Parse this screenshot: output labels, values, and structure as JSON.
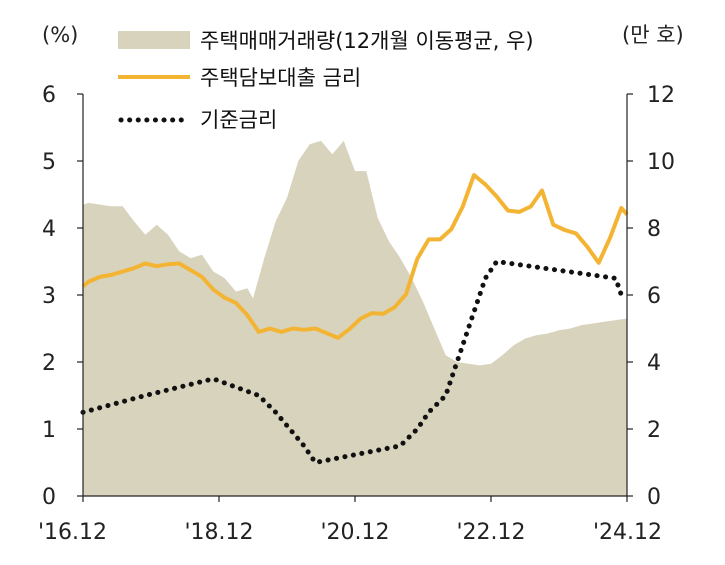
{
  "chart_data": {
    "type": "area",
    "left_axis_unit": "(%)",
    "right_axis_unit": "(만 호)",
    "left_ylim": [
      0,
      6
    ],
    "left_ticks": [
      "0",
      "1",
      "2",
      "3",
      "4",
      "5",
      "6"
    ],
    "right_ylim": [
      0,
      12
    ],
    "right_ticks": [
      "0",
      "2",
      "4",
      "6",
      "8",
      "10",
      "12"
    ],
    "x_range": [
      "2016-12",
      "2024-12"
    ],
    "x_ticks": [
      "'16.12",
      "'18.12",
      "'20.12",
      "'22.12",
      "'24.12"
    ],
    "grid": false,
    "legend_position": "top",
    "series": [
      {
        "name": "주택매매거래량(12개월 이동평균, 우)",
        "kind": "area",
        "axis": "right",
        "color": "#d8d3bd",
        "x": [
          "2016-12",
          "2017-01",
          "2017-03",
          "2017-05",
          "2017-07",
          "2017-09",
          "2017-11",
          "2018-01",
          "2018-03",
          "2018-05",
          "2018-07",
          "2018-09",
          "2018-11",
          "2019-01",
          "2019-03",
          "2019-05",
          "2019-06",
          "2019-08",
          "2019-10",
          "2019-12",
          "2020-02",
          "2020-04",
          "2020-06",
          "2020-08",
          "2020-10",
          "2020-12",
          "2021-02",
          "2021-04",
          "2021-06",
          "2021-08",
          "2021-10",
          "2021-12",
          "2022-02",
          "2022-04",
          "2022-06",
          "2022-08",
          "2022-10",
          "2022-12",
          "2023-02",
          "2023-04",
          "2023-06",
          "2023-08",
          "2023-10",
          "2023-12",
          "2024-02",
          "2024-04",
          "2024-06",
          "2024-08",
          "2024-10",
          "2024-12"
        ],
        "values": [
          8.7,
          8.75,
          8.7,
          8.65,
          8.65,
          8.2,
          7.8,
          8.1,
          7.8,
          7.3,
          7.1,
          7.2,
          6.7,
          6.5,
          6.1,
          6.2,
          5.9,
          7.1,
          8.2,
          8.9,
          10.0,
          10.5,
          10.6,
          10.2,
          10.6,
          9.7,
          9.7,
          8.3,
          7.6,
          7.1,
          6.5,
          5.8,
          5.0,
          4.2,
          4.0,
          3.95,
          3.9,
          3.95,
          4.2,
          4.5,
          4.7,
          4.8,
          4.85,
          4.95,
          5.0,
          5.1,
          5.15,
          5.2,
          5.25,
          5.3
        ]
      },
      {
        "name": "주택담보대출 금리",
        "kind": "line",
        "axis": "left",
        "color": "#f4b433",
        "x": [
          "2016-12",
          "2017-01",
          "2017-03",
          "2017-05",
          "2017-07",
          "2017-09",
          "2017-11",
          "2018-01",
          "2018-03",
          "2018-05",
          "2018-07",
          "2018-09",
          "2018-11",
          "2019-01",
          "2019-03",
          "2019-05",
          "2019-07",
          "2019-09",
          "2019-11",
          "2020-01",
          "2020-03",
          "2020-05",
          "2020-07",
          "2020-09",
          "2020-11",
          "2021-01",
          "2021-03",
          "2021-05",
          "2021-07",
          "2021-09",
          "2021-11",
          "2022-01",
          "2022-03",
          "2022-05",
          "2022-07",
          "2022-09",
          "2022-11",
          "2023-01",
          "2023-03",
          "2023-05",
          "2023-07",
          "2023-09",
          "2023-11",
          "2024-01",
          "2024-03",
          "2024-05",
          "2024-07",
          "2024-09",
          "2024-11",
          "2024-12"
        ],
        "values": [
          3.13,
          3.2,
          3.27,
          3.3,
          3.35,
          3.4,
          3.47,
          3.43,
          3.46,
          3.47,
          3.37,
          3.27,
          3.08,
          2.96,
          2.88,
          2.7,
          2.45,
          2.5,
          2.45,
          2.5,
          2.48,
          2.5,
          2.43,
          2.36,
          2.49,
          2.65,
          2.73,
          2.72,
          2.82,
          3.01,
          3.54,
          3.83,
          3.83,
          3.98,
          4.32,
          4.79,
          4.65,
          4.47,
          4.26,
          4.24,
          4.32,
          4.56,
          4.05,
          3.97,
          3.92,
          3.72,
          3.48,
          3.85,
          4.3,
          4.2
        ]
      },
      {
        "name": "기준금리",
        "kind": "dotted-line",
        "axis": "left",
        "color": "#111111",
        "x": [
          "2016-12",
          "2017-11",
          "2018-11",
          "2019-07",
          "2019-10",
          "2020-03",
          "2020-05",
          "2021-08",
          "2021-11",
          "2022-01",
          "2022-04",
          "2022-05",
          "2022-07",
          "2022-08",
          "2022-10",
          "2022-11",
          "2023-01",
          "2024-10",
          "2024-11"
        ],
        "values": [
          1.25,
          1.5,
          1.75,
          1.5,
          1.25,
          0.75,
          0.5,
          0.75,
          1.0,
          1.25,
          1.5,
          1.75,
          2.25,
          2.5,
          3.0,
          3.25,
          3.5,
          3.25,
          3.0
        ]
      }
    ]
  }
}
